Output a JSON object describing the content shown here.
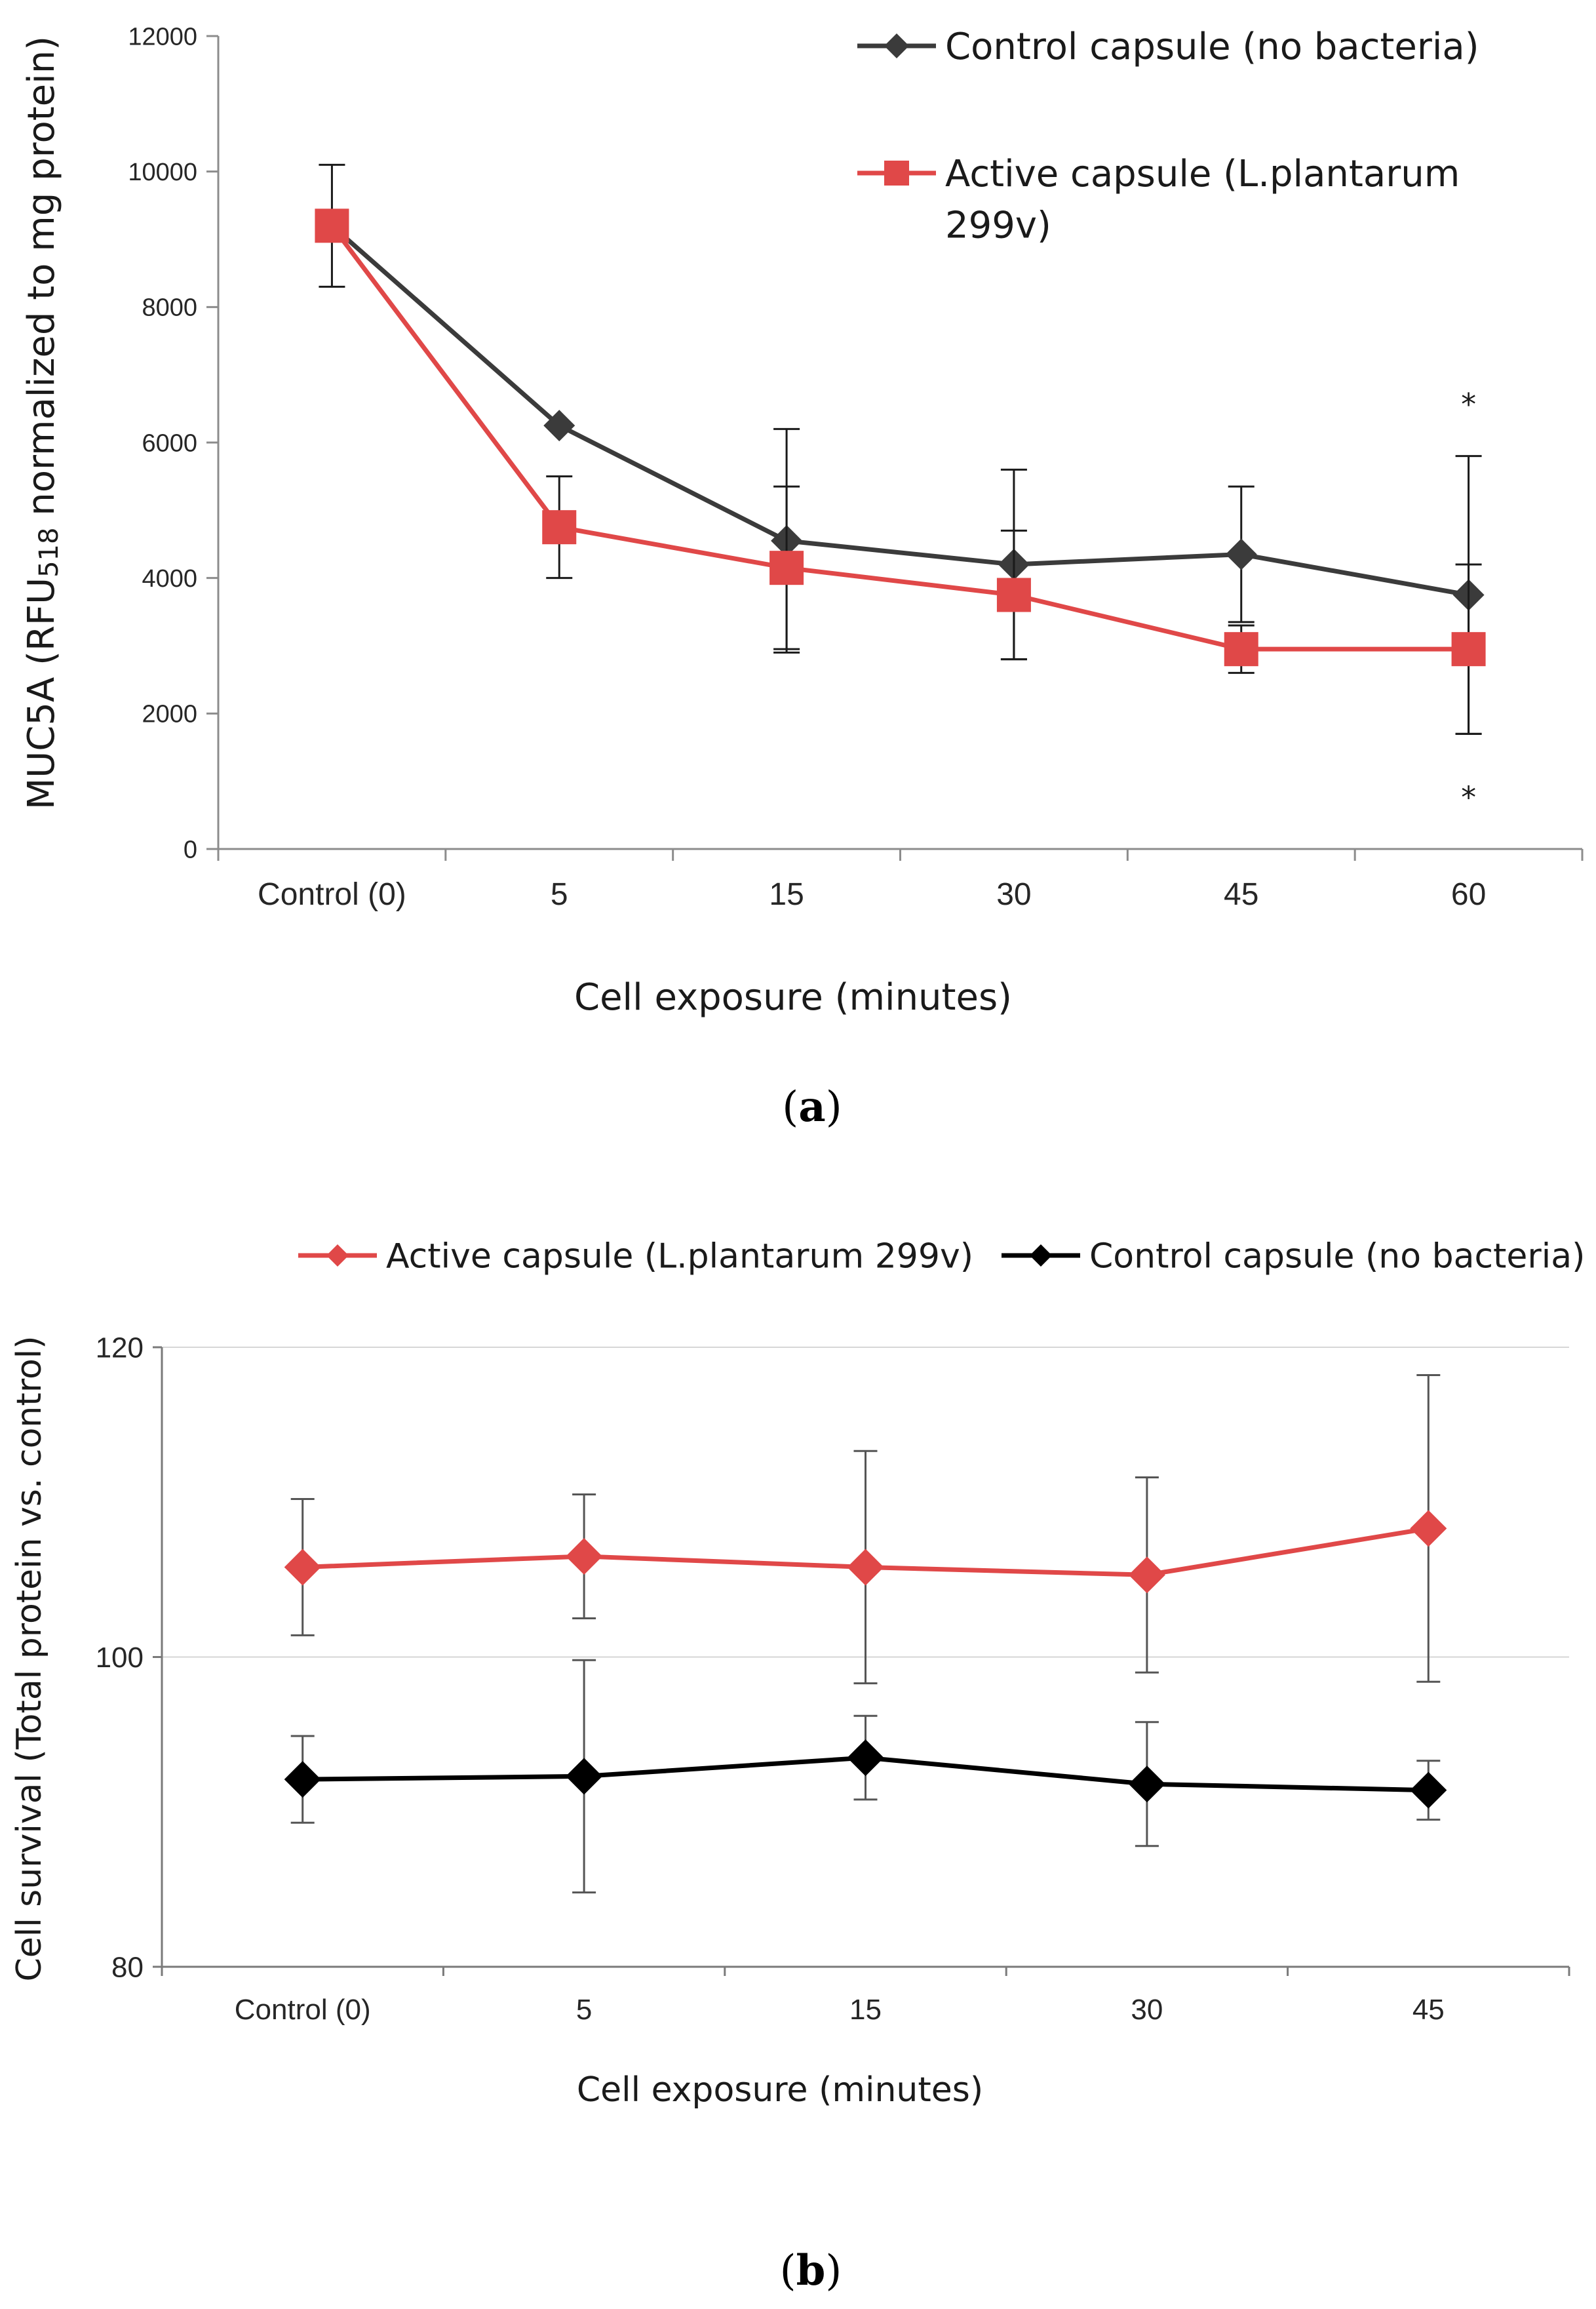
{
  "chart_data": [
    {
      "type": "line",
      "panel_label": "(a)",
      "panel_letter": "a",
      "xlabel": "Cell exposure (minutes)",
      "ylabel_prefix": "MUC5A  (RFU",
      "ylabel_sub": "518",
      "ylabel_suffix": " normalized to mg protein)",
      "categories": [
        "Control (0)",
        "5",
        "15",
        "30",
        "45",
        "60"
      ],
      "ylim": [
        0,
        12000
      ],
      "yticks": [
        0,
        2000,
        4000,
        6000,
        8000,
        10000,
        12000
      ],
      "grid": false,
      "legend_position": "top-right",
      "annotations": [
        {
          "text": "*",
          "category": "60",
          "y": 6600
        },
        {
          "text": "*",
          "category": "60",
          "y": 800
        }
      ],
      "series": [
        {
          "name": "Control capsule (no bacteria)",
          "color": "#3b3b3b",
          "marker": "diamond",
          "values": [
            9200,
            6250,
            4550,
            4200,
            4350,
            3750
          ],
          "errors": [
            900,
            0,
            1650,
            1400,
            1000,
            2050
          ]
        },
        {
          "name": "Active capsule (L.plantarum 299v)",
          "legend_lines": [
            "Active capsule (L.plantarum",
            "299v)"
          ],
          "color": "#e04848",
          "marker": "square",
          "values": [
            9200,
            4750,
            4150,
            3750,
            2950,
            2950
          ],
          "errors": [
            0,
            750,
            1200,
            950,
            350,
            1250
          ]
        }
      ]
    },
    {
      "type": "line",
      "panel_label": "(b)",
      "panel_letter": "b",
      "xlabel": "Cell exposure (minutes)",
      "ylabel": "Cell survival (Total protein vs. control)",
      "categories": [
        "Control (0)",
        "5",
        "15",
        "30",
        "45"
      ],
      "ylim": [
        80,
        120
      ],
      "yticks": [
        80,
        100,
        120
      ],
      "grid": true,
      "legend_position": "top",
      "series": [
        {
          "name": "Active capsule (L.plantarum 299v)",
          "color": "#e04848",
          "marker": "diamond",
          "values": [
            105.8,
            106.5,
            105.8,
            105.3,
            108.3
          ],
          "errors": [
            4.4,
            4.0,
            7.5,
            6.3,
            9.9
          ]
        },
        {
          "name": "Control capsule (no bacteria)",
          "color": "#000000",
          "marker": "diamond",
          "values": [
            92.1,
            92.3,
            93.5,
            91.8,
            91.4
          ],
          "errors": [
            2.8,
            7.5,
            2.7,
            4.0,
            1.9
          ]
        }
      ]
    }
  ]
}
